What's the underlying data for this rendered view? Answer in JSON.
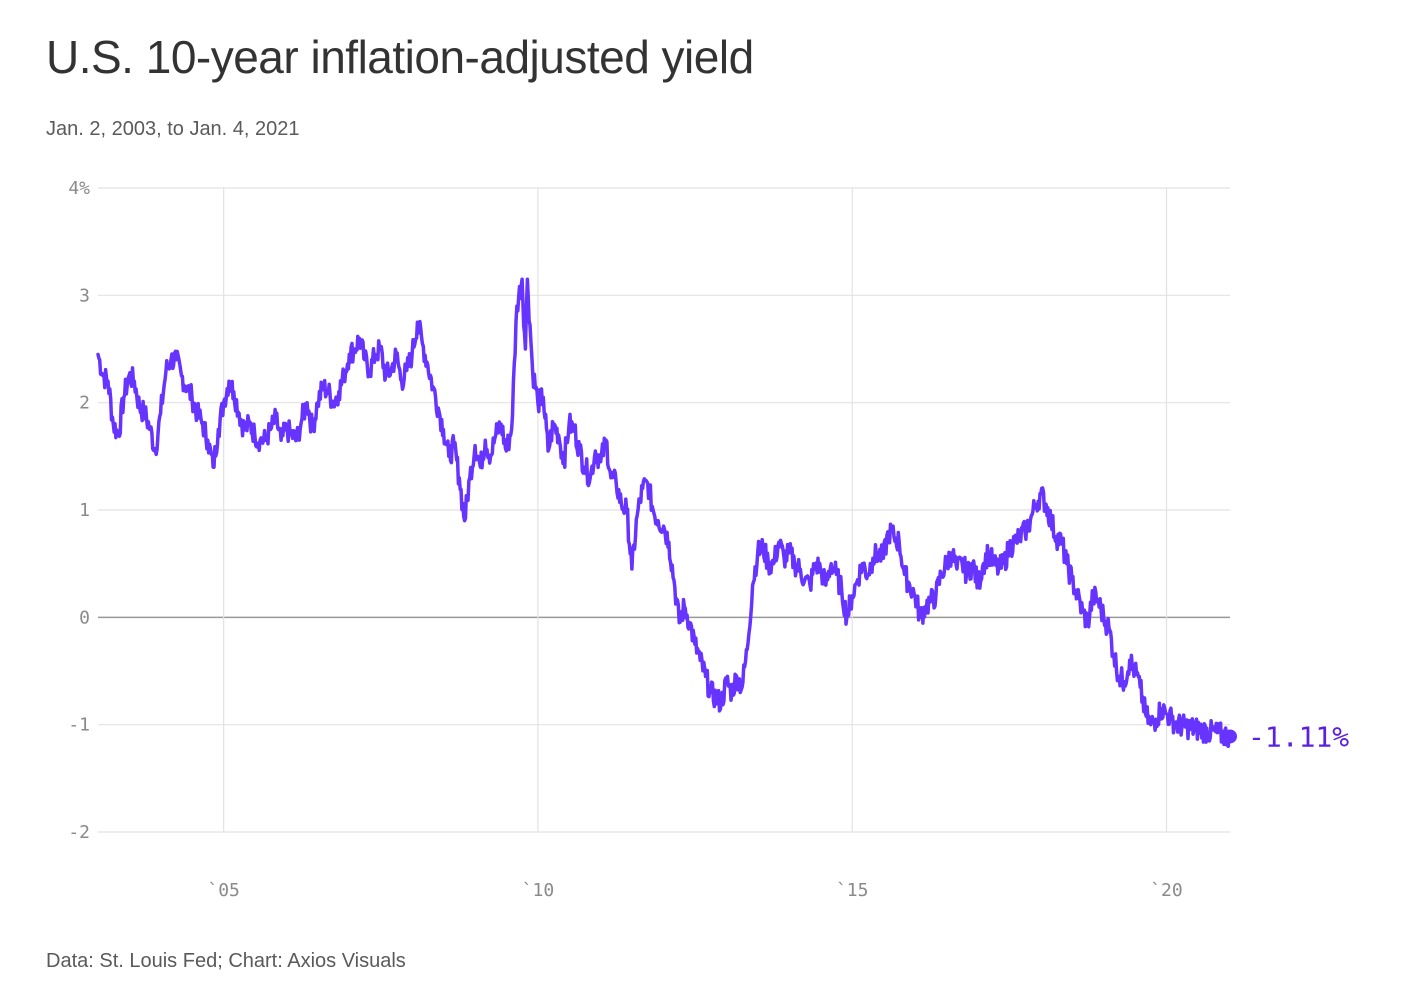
{
  "title": "U.S. 10-year inflation-adjusted yield",
  "subtitle": "Jan. 2, 2003, to Jan. 4, 2021",
  "source": "Data: St. Louis Fed; Chart: Axios Visuals",
  "colors": {
    "line": "#6633ff",
    "end_label": "#5a1fe0",
    "grid": "#e2e2e2",
    "zero_line": "#999999",
    "tick": "#8a8a8a"
  },
  "chart_data": {
    "type": "line",
    "ylim": [
      -2,
      4
    ],
    "xlim": [
      "2003-01-02",
      "2021-01-04"
    ],
    "grid": true,
    "y_ticks": [
      {
        "value": 4,
        "label": "4%"
      },
      {
        "value": 3,
        "label": "3"
      },
      {
        "value": 2,
        "label": "2"
      },
      {
        "value": 1,
        "label": "1"
      },
      {
        "value": 0,
        "label": "0"
      },
      {
        "value": -1,
        "label": "-1"
      },
      {
        "value": -2,
        "label": "-2"
      }
    ],
    "x_ticks": [
      {
        "value": "2005-01-01",
        "label": "`05"
      },
      {
        "value": "2010-01-01",
        "label": "`10"
      },
      {
        "value": "2015-01-01",
        "label": "`15"
      },
      {
        "value": "2020-01-01",
        "label": "`20"
      }
    ],
    "series": [
      {
        "points": [
          [
            "2003-01-02",
            2.45
          ],
          [
            "2003-02-01",
            2.25
          ],
          [
            "2003-03-01",
            2.2
          ],
          [
            "2003-04-01",
            1.8
          ],
          [
            "2003-05-01",
            1.7
          ],
          [
            "2003-06-01",
            2.05
          ],
          [
            "2003-07-01",
            2.25
          ],
          [
            "2003-08-01",
            2.2
          ],
          [
            "2003-09-01",
            1.95
          ],
          [
            "2003-10-01",
            1.9
          ],
          [
            "2003-11-01",
            1.75
          ],
          [
            "2003-12-01",
            1.55
          ],
          [
            "2004-01-01",
            1.9
          ],
          [
            "2004-02-01",
            2.3
          ],
          [
            "2004-03-01",
            2.4
          ],
          [
            "2004-04-01",
            2.4
          ],
          [
            "2004-05-01",
            2.25
          ],
          [
            "2004-06-01",
            2.15
          ],
          [
            "2004-07-01",
            2.05
          ],
          [
            "2004-08-01",
            1.9
          ],
          [
            "2004-09-01",
            1.8
          ],
          [
            "2004-10-01",
            1.65
          ],
          [
            "2004-11-01",
            1.4
          ],
          [
            "2004-12-01",
            1.75
          ],
          [
            "2005-01-01",
            2.0
          ],
          [
            "2005-02-01",
            2.2
          ],
          [
            "2005-03-01",
            2.1
          ],
          [
            "2005-04-01",
            1.9
          ],
          [
            "2005-05-01",
            1.75
          ],
          [
            "2005-06-01",
            1.8
          ],
          [
            "2005-07-01",
            1.7
          ],
          [
            "2005-08-01",
            1.65
          ],
          [
            "2005-09-01",
            1.65
          ],
          [
            "2005-10-01",
            1.75
          ],
          [
            "2005-11-01",
            1.85
          ],
          [
            "2005-12-01",
            1.65
          ],
          [
            "2006-01-01",
            1.75
          ],
          [
            "2006-02-01",
            1.7
          ],
          [
            "2006-03-01",
            1.65
          ],
          [
            "2006-04-01",
            1.85
          ],
          [
            "2006-05-01",
            2.0
          ],
          [
            "2006-06-01",
            1.75
          ],
          [
            "2006-07-01",
            2.0
          ],
          [
            "2006-08-01",
            2.15
          ],
          [
            "2006-09-01",
            2.1
          ],
          [
            "2006-10-01",
            2.0
          ],
          [
            "2006-11-01",
            2.1
          ],
          [
            "2006-12-01",
            2.25
          ],
          [
            "2007-01-01",
            2.45
          ],
          [
            "2007-02-01",
            2.5
          ],
          [
            "2007-03-01",
            2.6
          ],
          [
            "2007-04-01",
            2.4
          ],
          [
            "2007-05-01",
            2.3
          ],
          [
            "2007-06-01",
            2.45
          ],
          [
            "2007-07-01",
            2.5
          ],
          [
            "2007-08-01",
            2.25
          ],
          [
            "2007-09-01",
            2.3
          ],
          [
            "2007-10-01",
            2.45
          ],
          [
            "2007-11-01",
            2.2
          ],
          [
            "2007-12-01",
            2.3
          ],
          [
            "2008-01-01",
            2.45
          ],
          [
            "2008-02-01",
            2.75
          ],
          [
            "2008-03-01",
            2.55
          ],
          [
            "2008-04-01",
            2.35
          ],
          [
            "2008-05-01",
            2.15
          ],
          [
            "2008-06-01",
            1.95
          ],
          [
            "2008-07-01",
            1.75
          ],
          [
            "2008-08-01",
            1.5
          ],
          [
            "2008-09-01",
            1.6
          ],
          [
            "2008-10-01",
            1.3
          ],
          [
            "2008-11-01",
            0.9
          ],
          [
            "2008-12-01",
            1.3
          ],
          [
            "2009-01-01",
            1.6
          ],
          [
            "2009-02-01",
            1.4
          ],
          [
            "2009-03-01",
            1.65
          ],
          [
            "2009-04-01",
            1.5
          ],
          [
            "2009-05-01",
            1.7
          ],
          [
            "2009-06-01",
            1.8
          ],
          [
            "2009-07-01",
            1.55
          ],
          [
            "2009-08-01",
            1.75
          ],
          [
            "2009-09-01",
            2.9
          ],
          [
            "2009-10-01",
            3.15
          ],
          [
            "2009-10-20",
            2.5
          ],
          [
            "2009-11-01",
            3.15
          ],
          [
            "2009-12-01",
            2.3
          ],
          [
            "2010-01-01",
            2.0
          ],
          [
            "2010-02-01",
            2.05
          ],
          [
            "2010-03-01",
            1.55
          ],
          [
            "2010-04-01",
            1.8
          ],
          [
            "2010-05-01",
            1.7
          ],
          [
            "2010-06-01",
            1.45
          ],
          [
            "2010-07-01",
            1.8
          ],
          [
            "2010-08-01",
            1.75
          ],
          [
            "2010-09-01",
            1.55
          ],
          [
            "2010-10-01",
            1.4
          ],
          [
            "2010-11-01",
            1.3
          ],
          [
            "2010-12-01",
            1.55
          ],
          [
            "2011-01-01",
            1.45
          ],
          [
            "2011-02-01",
            1.65
          ],
          [
            "2011-03-01",
            1.3
          ],
          [
            "2011-04-01",
            1.25
          ],
          [
            "2011-05-01",
            1.05
          ],
          [
            "2011-06-01",
            1.0
          ],
          [
            "2011-07-01",
            0.45
          ],
          [
            "2011-08-01",
            0.95
          ],
          [
            "2011-09-01",
            1.2
          ],
          [
            "2011-10-01",
            1.25
          ],
          [
            "2011-11-01",
            1.0
          ],
          [
            "2011-12-01",
            0.9
          ],
          [
            "2012-01-01",
            0.85
          ],
          [
            "2012-02-01",
            0.7
          ],
          [
            "2012-03-01",
            0.35
          ],
          [
            "2012-04-01",
            -0.05
          ],
          [
            "2012-05-01",
            0.1
          ],
          [
            "2012-06-01",
            -0.05
          ],
          [
            "2012-07-01",
            -0.25
          ],
          [
            "2012-08-01",
            -0.4
          ],
          [
            "2012-09-01",
            -0.55
          ],
          [
            "2012-10-01",
            -0.7
          ],
          [
            "2012-11-01",
            -0.75
          ],
          [
            "2012-12-01",
            -0.8
          ],
          [
            "2013-01-01",
            -0.6
          ],
          [
            "2013-02-01",
            -0.7
          ],
          [
            "2013-03-01",
            -0.55
          ],
          [
            "2013-04-01",
            -0.65
          ],
          [
            "2013-05-01",
            -0.3
          ],
          [
            "2013-06-01",
            0.3
          ],
          [
            "2013-07-01",
            0.6
          ],
          [
            "2013-08-01",
            0.65
          ],
          [
            "2013-09-01",
            0.5
          ],
          [
            "2013-10-01",
            0.5
          ],
          [
            "2013-11-01",
            0.7
          ],
          [
            "2013-12-01",
            0.55
          ],
          [
            "2014-01-01",
            0.6
          ],
          [
            "2014-02-01",
            0.5
          ],
          [
            "2014-03-01",
            0.45
          ],
          [
            "2014-04-01",
            0.35
          ],
          [
            "2014-05-01",
            0.3
          ],
          [
            "2014-06-01",
            0.5
          ],
          [
            "2014-07-01",
            0.45
          ],
          [
            "2014-08-01",
            0.3
          ],
          [
            "2014-09-01",
            0.5
          ],
          [
            "2014-10-01",
            0.4
          ],
          [
            "2014-11-01",
            0.25
          ],
          [
            "2014-12-01",
            0.0
          ],
          [
            "2015-01-01",
            0.2
          ],
          [
            "2015-02-01",
            0.35
          ],
          [
            "2015-03-01",
            0.5
          ],
          [
            "2015-04-01",
            0.4
          ],
          [
            "2015-05-01",
            0.55
          ],
          [
            "2015-06-01",
            0.6
          ],
          [
            "2015-07-01",
            0.55
          ],
          [
            "2015-08-01",
            0.8
          ],
          [
            "2015-09-01",
            0.75
          ],
          [
            "2015-10-01",
            0.7
          ],
          [
            "2015-11-01",
            0.4
          ],
          [
            "2015-12-01",
            0.3
          ],
          [
            "2016-01-01",
            0.2
          ],
          [
            "2016-02-01",
            0.0
          ],
          [
            "2016-03-01",
            0.1
          ],
          [
            "2016-04-01",
            0.15
          ],
          [
            "2016-05-01",
            0.2
          ],
          [
            "2016-06-01",
            0.4
          ],
          [
            "2016-07-01",
            0.5
          ],
          [
            "2016-08-01",
            0.6
          ],
          [
            "2016-09-01",
            0.45
          ],
          [
            "2016-10-01",
            0.5
          ],
          [
            "2016-11-01",
            0.4
          ],
          [
            "2016-12-01",
            0.5
          ],
          [
            "2017-01-01",
            0.3
          ],
          [
            "2017-02-01",
            0.5
          ],
          [
            "2017-03-01",
            0.6
          ],
          [
            "2017-04-01",
            0.5
          ],
          [
            "2017-05-01",
            0.45
          ],
          [
            "2017-06-01",
            0.5
          ],
          [
            "2017-07-01",
            0.65
          ],
          [
            "2017-08-01",
            0.7
          ],
          [
            "2017-09-01",
            0.75
          ],
          [
            "2017-10-01",
            0.8
          ],
          [
            "2017-11-01",
            0.9
          ],
          [
            "2017-12-01",
            1.05
          ],
          [
            "2018-01-01",
            1.15
          ],
          [
            "2018-02-01",
            1.05
          ],
          [
            "2018-03-01",
            0.9
          ],
          [
            "2018-04-01",
            0.75
          ],
          [
            "2018-05-01",
            0.7
          ],
          [
            "2018-06-01",
            0.5
          ],
          [
            "2018-07-01",
            0.35
          ],
          [
            "2018-08-01",
            0.2
          ],
          [
            "2018-09-01",
            0.05
          ],
          [
            "2018-10-01",
            -0.05
          ],
          [
            "2018-11-01",
            0.2
          ],
          [
            "2018-12-01",
            0.15
          ],
          [
            "2019-01-01",
            0.0
          ],
          [
            "2019-02-01",
            -0.1
          ],
          [
            "2019-03-01",
            -0.35
          ],
          [
            "2019-04-01",
            -0.55
          ],
          [
            "2019-05-01",
            -0.6
          ],
          [
            "2019-06-01",
            -0.4
          ],
          [
            "2019-07-01",
            -0.5
          ],
          [
            "2019-08-01",
            -0.65
          ],
          [
            "2019-09-01",
            -0.9
          ],
          [
            "2019-10-01",
            -1.0
          ],
          [
            "2019-11-01",
            -0.95
          ],
          [
            "2019-12-01",
            -0.85
          ],
          [
            "2020-01-01",
            -0.9
          ],
          [
            "2020-02-01",
            -0.95
          ],
          [
            "2020-03-01",
            -1.0
          ],
          [
            "2021-01-04",
            -1.11
          ]
        ]
      }
    ],
    "end_point": {
      "date": "2021-01-04",
      "value": -1.11,
      "label": "-1.11%"
    }
  }
}
